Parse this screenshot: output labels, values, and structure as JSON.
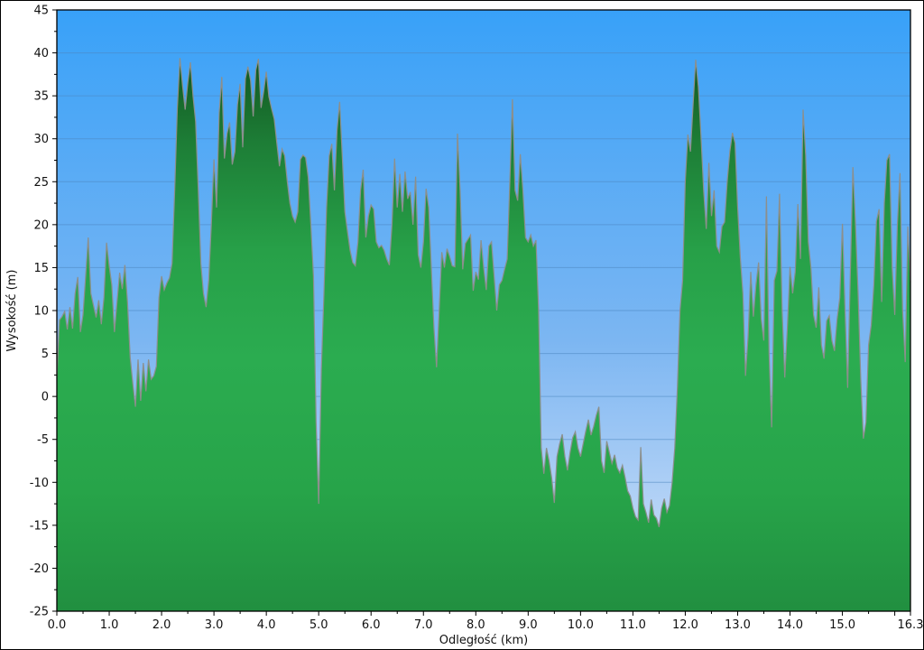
{
  "figure": {
    "background": "#ffffff",
    "frame_color": "#000000"
  },
  "axes": {
    "x": {
      "title": "Odległość  (km)",
      "min": 0,
      "max": 16.3,
      "major_tick_positions": [
        0,
        1,
        2,
        3,
        4,
        5,
        6,
        7,
        8,
        9,
        10,
        11,
        12,
        13,
        14,
        15,
        16.3
      ],
      "major_tick_labels": [
        "0.0",
        "1.0",
        "2.0",
        "3.0",
        "4.0",
        "5.0",
        "6.0",
        "7.0",
        "8.0",
        "9.0",
        "10.0",
        "11.0",
        "12.0",
        "13.0",
        "14.0",
        "15.0",
        "16.3"
      ],
      "unlabeled_tick_positions": [
        16
      ],
      "minor_tick_step": 0.5
    },
    "y": {
      "title": "Wysokość (m)",
      "min": -25,
      "max": 45,
      "major_tick_positions": [
        45,
        40,
        35,
        30,
        25,
        20,
        15,
        10,
        5,
        0,
        -5,
        -10,
        -15,
        -20,
        -25
      ],
      "major_tick_labels": [
        "45",
        "40",
        "35",
        "30",
        "25",
        "20",
        "15",
        "10",
        "5",
        "0",
        "-5",
        "-10",
        "-15",
        "-20",
        "-25"
      ],
      "minor_tick_step": 2.5
    }
  },
  "chart_data": {
    "type": "area",
    "title": "",
    "xlabel": "Odległość  (km)",
    "ylabel": "Wysokość (m)",
    "xlim": [
      0,
      16.3
    ],
    "ylim": [
      -25,
      45
    ],
    "grid": "horizontal-major-only",
    "legend": "none",
    "x_start_km": 0,
    "x_step_km": 0.05,
    "elevation_m": [
      2.3,
      8.9,
      9.3,
      9.9,
      7.8,
      10.4,
      7.9,
      12.0,
      13.9,
      7.5,
      9.5,
      14.0,
      18.5,
      12.0,
      10.6,
      9.2,
      11.2,
      8.4,
      11.5,
      17.9,
      15.2,
      13.0,
      7.5,
      11.0,
      14.4,
      12.5,
      15.3,
      11.0,
      4.5,
      1.5,
      -1.2,
      4.3,
      -0.5,
      3.9,
      0.6,
      4.3,
      2.0,
      2.4,
      3.5,
      11.5,
      14.0,
      12.4,
      13.2,
      13.8,
      15.5,
      24.0,
      33.5,
      39.4,
      36.2,
      33.4,
      36.5,
      38.9,
      35.0,
      32.0,
      24.2,
      15.5,
      12.0,
      10.4,
      13.5,
      20.0,
      27.6,
      22.0,
      33.0,
      37.2,
      27.7,
      30.6,
      31.9,
      27.0,
      28.5,
      34.0,
      36.4,
      29.0,
      37.0,
      38.4,
      36.8,
      32.6,
      38.0,
      39.3,
      33.6,
      35.5,
      37.8,
      34.9,
      33.5,
      32.3,
      29.5,
      26.8,
      28.8,
      28.0,
      25.0,
      22.5,
      21.0,
      20.3,
      21.5,
      27.6,
      28.1,
      27.8,
      25.5,
      20.0,
      14.0,
      -3.0,
      -12.5,
      3.0,
      12.0,
      22.0,
      28.0,
      29.4,
      24.0,
      31.0,
      34.3,
      28.0,
      21.5,
      19.2,
      17.0,
      15.6,
      15.2,
      18.0,
      24.0,
      26.4,
      18.5,
      21.0,
      22.3,
      21.8,
      18.0,
      17.3,
      17.6,
      17.0,
      16.0,
      15.3,
      20.0,
      27.7,
      22.0,
      25.9,
      21.5,
      26.2,
      23.0,
      23.8,
      20.0,
      25.6,
      16.5,
      15.0,
      18.0,
      24.2,
      22.0,
      15.0,
      8.0,
      3.4,
      10.0,
      16.8,
      15.0,
      17.2,
      16.3,
      15.2,
      15.1,
      30.6,
      24.0,
      14.8,
      17.8,
      18.3,
      18.8,
      12.3,
      14.5,
      13.6,
      18.2,
      15.0,
      12.4,
      17.5,
      18.0,
      14.0,
      10.0,
      13.0,
      13.5,
      14.8,
      16.0,
      25.0,
      34.6,
      24.0,
      22.8,
      28.2,
      24.0,
      18.5,
      18.0,
      18.8,
      17.5,
      18.2,
      10.0,
      -6.0,
      -9.0,
      -6.0,
      -7.5,
      -9.5,
      -12.4,
      -7.0,
      -5.5,
      -4.4,
      -7.0,
      -8.6,
      -6.5,
      -4.8,
      -4.1,
      -6.0,
      -7.0,
      -5.5,
      -4.0,
      -2.7,
      -4.5,
      -3.5,
      -2.2,
      -1.2,
      -7.5,
      -8.9,
      -5.2,
      -6.5,
      -7.8,
      -6.8,
      -8.3,
      -8.9,
      -8.0,
      -9.4,
      -11.0,
      -11.6,
      -13.0,
      -14.0,
      -14.4,
      -5.9,
      -12.5,
      -13.5,
      -14.7,
      -12.0,
      -13.8,
      -14.2,
      -15.2,
      -13.0,
      -11.9,
      -13.5,
      -12.7,
      -10.0,
      -6.0,
      1.0,
      10.0,
      13.5,
      25.0,
      30.5,
      28.5,
      34.0,
      39.2,
      36.0,
      30.2,
      24.0,
      19.5,
      27.2,
      21.0,
      24.0,
      17.5,
      16.8,
      19.8,
      20.3,
      25.0,
      28.5,
      30.7,
      29.5,
      22.0,
      16.2,
      12.0,
      2.4,
      7.0,
      14.5,
      9.3,
      13.0,
      15.6,
      9.0,
      6.5,
      23.3,
      5.0,
      -3.6,
      13.5,
      14.6,
      23.6,
      10.0,
      2.2,
      8.0,
      15.1,
      12.0,
      14.5,
      22.4,
      16.0,
      33.4,
      28.0,
      18.0,
      15.0,
      9.5,
      8.0,
      12.7,
      6.0,
      4.4,
      8.8,
      9.4,
      6.5,
      5.3,
      9.0,
      11.5,
      20.1,
      10.0,
      1.0,
      14.0,
      26.7,
      20.0,
      12.0,
      2.0,
      -4.9,
      -3.0,
      6.0,
      8.3,
      13.0,
      20.4,
      21.8,
      11.0,
      22.5,
      27.5,
      28.2,
      15.0,
      9.5,
      20.0,
      26.0,
      10.0,
      4.0,
      19.8,
      13.3
    ],
    "colors": {
      "sky_top": "#38a1f8",
      "sky_mid": "#7cb6f2",
      "sky_bottom": "#d7e4f8",
      "fill_top": "#0a4517",
      "fill_upper": "#135c24",
      "fill_high": "#1d7d36",
      "fill_mid": "#27a048",
      "fill_bright": "#2bac50",
      "fill_low": "#27a449",
      "fill_bottom": "#218f40",
      "outline": "#8c8f8c",
      "gridline": "#4d86c0",
      "axis": "#000000",
      "text": "#111111"
    }
  }
}
